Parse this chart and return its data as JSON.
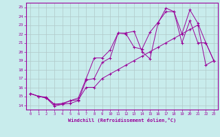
{
  "background_color": "#c8ecec",
  "grid_color": "#b0c8c8",
  "line_color": "#990099",
  "xlabel": "Windchill (Refroidissement éolien,°C)",
  "xlim": [
    -0.5,
    23.5
  ],
  "ylim": [
    13.5,
    25.5
  ],
  "xticks": [
    0,
    1,
    2,
    3,
    4,
    5,
    6,
    7,
    8,
    9,
    10,
    11,
    12,
    13,
    14,
    15,
    16,
    17,
    18,
    19,
    20,
    21,
    22,
    23
  ],
  "yticks": [
    14,
    15,
    16,
    17,
    18,
    19,
    20,
    21,
    22,
    23,
    24,
    25
  ],
  "line1_x": [
    0,
    1,
    2,
    3,
    4,
    5,
    6,
    7,
    8,
    9,
    10,
    11,
    12,
    13,
    14,
    15,
    16,
    17,
    18,
    19,
    20,
    21,
    22,
    23
  ],
  "line1_y": [
    15.3,
    15.0,
    14.8,
    13.9,
    14.1,
    14.2,
    14.5,
    16.8,
    17.0,
    18.8,
    19.3,
    22.1,
    22.1,
    22.3,
    20.0,
    19.2,
    23.2,
    24.9,
    24.5,
    21.0,
    23.5,
    21.0,
    21.0,
    19.0
  ],
  "line2_x": [
    0,
    1,
    2,
    3,
    4,
    5,
    6,
    7,
    8,
    9,
    10,
    11,
    12,
    13,
    14,
    15,
    16,
    17,
    18,
    19,
    20,
    21,
    22,
    23
  ],
  "line2_y": [
    15.3,
    15.0,
    14.8,
    14.1,
    14.1,
    14.5,
    14.8,
    17.0,
    19.3,
    19.3,
    20.2,
    22.1,
    22.0,
    20.5,
    20.3,
    22.2,
    23.3,
    24.5,
    24.5,
    22.0,
    24.7,
    23.2,
    21.0,
    19.0
  ],
  "line3_x": [
    0,
    1,
    2,
    3,
    4,
    5,
    6,
    7,
    8,
    9,
    10,
    11,
    12,
    13,
    14,
    15,
    16,
    17,
    18,
    19,
    20,
    21,
    22,
    23
  ],
  "line3_y": [
    15.3,
    15.0,
    14.9,
    14.1,
    14.2,
    14.5,
    14.6,
    16.0,
    16.0,
    17.0,
    17.5,
    18.0,
    18.5,
    19.0,
    19.5,
    20.0,
    20.5,
    21.0,
    21.5,
    22.0,
    22.5,
    23.0,
    18.5,
    19.0
  ]
}
